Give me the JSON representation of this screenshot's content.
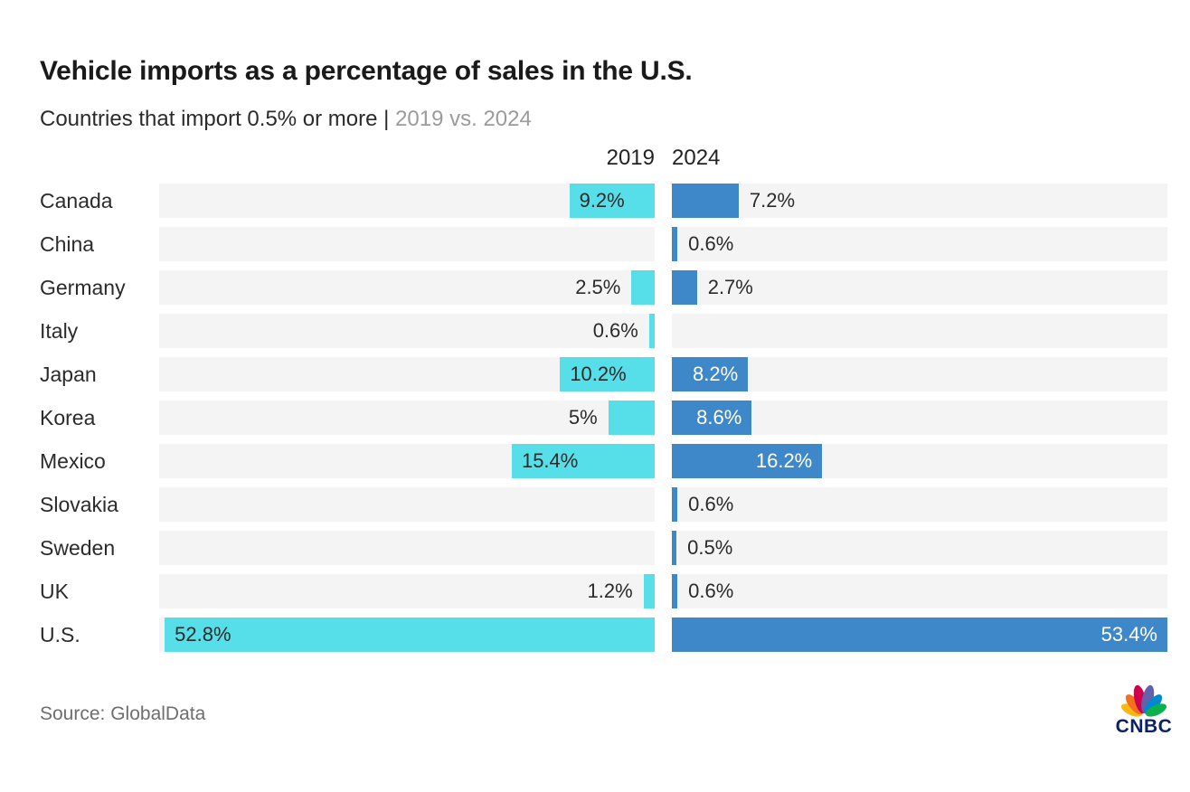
{
  "header": {
    "title": "Vehicle imports as a percentage of sales in the U.S.",
    "subtitle_dark": "Countries that import 0.5% or more | ",
    "subtitle_gray": "2019 vs. 2024"
  },
  "columns": {
    "left_label": "2019",
    "right_label": "2024"
  },
  "colors": {
    "cyan_2019": "#56dfe8",
    "blue_2024": "#3e87c8",
    "track": "#f4f4f4",
    "text_dark": "#2b2b2b",
    "text_gray": "#9b9b9b",
    "source_gray": "#6e6e6e",
    "cnbc_navy": "#0b2265",
    "peacock": [
      "#FCB711",
      "#F37021",
      "#CC004C",
      "#6460AA",
      "#0089D0",
      "#0DB14B"
    ]
  },
  "chart_data": {
    "type": "bar",
    "orientation": "mirrored-horizontal",
    "title": "Vehicle imports as a percentage of sales in the U.S.",
    "subtitle": "Countries that import 0.5% or more | 2019 vs. 2024",
    "axis_max": 53.4,
    "grid": false,
    "legend_position": "column-headers-top-center",
    "categories": [
      "Canada",
      "China",
      "Germany",
      "Italy",
      "Japan",
      "Korea",
      "Mexico",
      "Slovakia",
      "Sweden",
      "UK",
      "U.S."
    ],
    "series": [
      {
        "name": "2019",
        "side": "left",
        "color": "#56dfe8",
        "values": [
          9.2,
          null,
          2.5,
          0.6,
          10.2,
          5,
          15.4,
          null,
          null,
          1.2,
          52.8
        ],
        "labels": [
          "9.2%",
          null,
          "2.5%",
          "0.6%",
          "10.2%",
          "5%",
          "15.4%",
          null,
          null,
          "1.2%",
          "52.8%"
        ],
        "label_inside": [
          true,
          null,
          false,
          false,
          true,
          false,
          true,
          null,
          null,
          false,
          true
        ]
      },
      {
        "name": "2024",
        "side": "right",
        "color": "#3e87c8",
        "values": [
          7.2,
          0.6,
          2.7,
          null,
          8.2,
          8.6,
          16.2,
          0.6,
          0.5,
          0.6,
          53.4
        ],
        "labels": [
          "7.2%",
          "0.6%",
          "2.7%",
          null,
          "8.2%",
          "8.6%",
          "16.2%",
          "0.6%",
          "0.5%",
          "0.6%",
          "53.4%"
        ],
        "label_inside": [
          false,
          false,
          false,
          null,
          true,
          true,
          true,
          false,
          false,
          false,
          true
        ]
      }
    ]
  },
  "footer": {
    "source": "Source: GlobalData",
    "logo_text": "CNBC"
  }
}
